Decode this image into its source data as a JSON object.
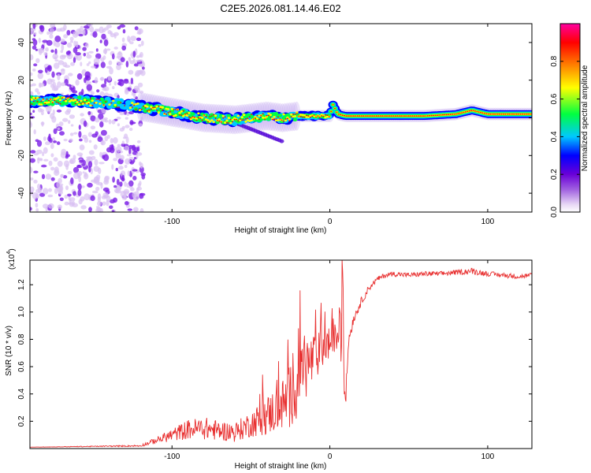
{
  "title": "C2E5.2026.081.14.46.E02",
  "chart_data": [
    {
      "type": "heatmap",
      "name": "spectrogram",
      "xlabel": "Height of straight line (km)",
      "ylabel": "Frequency (Hz)",
      "xlim": [
        -190,
        128
      ],
      "ylim": [
        -50,
        50
      ],
      "xticks": [
        -100,
        0,
        100
      ],
      "yticks": [
        -40,
        -20,
        0,
        20,
        40
      ],
      "colorbar": {
        "label": "Normalized spectral amplitude",
        "range": [
          0,
          1
        ],
        "ticks": [
          "0.0",
          "0.2",
          "0.4",
          "0.6",
          "0.8"
        ],
        "tick_values": [
          0.0,
          0.2,
          0.4,
          0.6,
          0.8
        ],
        "colors": [
          "#ffffff",
          "#e8d8f5",
          "#a060e0",
          "#6a00d8",
          "#0000ff",
          "#00c8ff",
          "#00ff40",
          "#ffff00",
          "#ff8000",
          "#ff0000",
          "#ff00a0"
        ]
      },
      "ridge": {
        "x": [
          -185,
          -160,
          -140,
          -120,
          -100,
          -80,
          -60,
          -40,
          -30,
          -20,
          -10,
          0,
          2,
          5,
          10,
          20,
          40,
          60,
          80,
          90,
          100,
          128
        ],
        "y": [
          9,
          9,
          8,
          6,
          3,
          0,
          -1,
          1,
          0,
          1,
          1,
          1,
          7,
          2,
          1,
          1,
          1,
          1,
          2,
          4,
          2,
          2
        ]
      },
      "noise_region_x": [
        -190,
        -118
      ]
    },
    {
      "type": "line",
      "name": "snr",
      "xlabel": "Height of straight line (km)",
      "ylabel": "SNR (10 * v/v)",
      "scale_label": "(x10",
      "scale_exp": "4",
      "xlim": [
        -190,
        128
      ],
      "ylim": [
        0,
        1.38
      ],
      "xticks": [
        -100,
        0,
        100
      ],
      "yticks": [
        0.2,
        0.4,
        0.6,
        0.8,
        1.0,
        1.2
      ],
      "ytick_labels": [
        "0.2",
        "0.4",
        "0.6",
        "0.8",
        "1.0",
        "1.2"
      ],
      "color": "#e83030",
      "series": [
        {
          "name": "SNR",
          "x": [
            -190,
            -120,
            -110,
            -100,
            -90,
            -80,
            -70,
            -60,
            -50,
            -40,
            -30,
            -25,
            -20,
            -15,
            -10,
            -5,
            0,
            5,
            8,
            10,
            11,
            12,
            15,
            20,
            25,
            30,
            35,
            40,
            50,
            60,
            70,
            80,
            90,
            100,
            110,
            120,
            128
          ],
          "y": [
            0.01,
            0.02,
            0.06,
            0.1,
            0.14,
            0.15,
            0.13,
            0.12,
            0.18,
            0.24,
            0.32,
            0.38,
            0.5,
            0.6,
            0.66,
            0.72,
            0.78,
            0.82,
            0.84,
            0.35,
            0.6,
            0.8,
            0.95,
            1.08,
            1.18,
            1.24,
            1.27,
            1.28,
            1.27,
            1.28,
            1.28,
            1.29,
            1.3,
            1.28,
            1.27,
            1.26,
            1.27
          ],
          "spike_amplitude": [
            0.0,
            0.01,
            0.04,
            0.08,
            0.12,
            0.14,
            0.12,
            0.12,
            0.16,
            0.24,
            0.32,
            0.4,
            0.45,
            0.4,
            0.3,
            0.24,
            0.2,
            0.18,
            0.5,
            0.1,
            0.1,
            0.08,
            0.06,
            0.05,
            0.04,
            0.03,
            0.03,
            0.03,
            0.03,
            0.03,
            0.03,
            0.03,
            0.04,
            0.03,
            0.03,
            0.03,
            0.03
          ]
        }
      ]
    }
  ]
}
